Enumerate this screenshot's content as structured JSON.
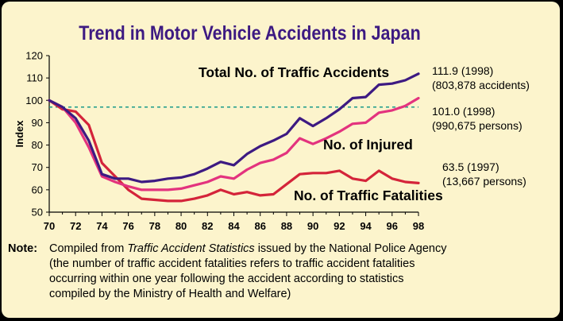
{
  "title": "Trend in Motor Vehicle Accidents in Japan",
  "note": {
    "label": "Note:",
    "line1_prefix": "Compiled from ",
    "line1_italic": "Traffic Accident Statistics",
    "line1_suffix": " issued by the National Police Agency",
    "line2": "(the number of traffic accident fatalities refers to traffic accident fatalities",
    "line3": "occurring within one year following the accident according to statistics",
    "line4": "compiled by the Ministry of Health and Welfare)"
  },
  "colors": {
    "background": "#fcf4cc",
    "accidents": "#3d1a82",
    "injured": "#e3337e",
    "fatalities": "#d4243a",
    "reference_line": "#1a9a8a"
  },
  "chart_data": {
    "type": "line",
    "title": "Trend in Motor Vehicle Accidents in Japan",
    "xlabel": "",
    "ylabel": "Index",
    "xlim": [
      70,
      98
    ],
    "ylim": [
      50,
      120
    ],
    "xticks": [
      70,
      72,
      74,
      76,
      78,
      80,
      82,
      84,
      86,
      88,
      90,
      92,
      94,
      96,
      98
    ],
    "yticks": [
      50,
      60,
      70,
      80,
      90,
      100,
      110,
      120
    ],
    "reference_line": 97,
    "grid": false,
    "series": [
      {
        "name": "Total No. of Traffic Accidents",
        "color": "#3d1a82",
        "x": [
          70,
          71,
          72,
          73,
          74,
          75,
          76,
          77,
          78,
          79,
          80,
          81,
          82,
          83,
          84,
          85,
          86,
          87,
          88,
          89,
          90,
          91,
          92,
          93,
          94,
          95,
          96,
          97,
          98
        ],
        "y": [
          100,
          97,
          92,
          82,
          67,
          65,
          65,
          63.5,
          64,
          65,
          65.5,
          67,
          69.5,
          72.5,
          71,
          76,
          79.5,
          82,
          85,
          92,
          88.5,
          92,
          96,
          101,
          101.5,
          107,
          107.5,
          109,
          111.9
        ],
        "annotation": [
          "111.9 (1998)",
          "(803,878 accidents)"
        ]
      },
      {
        "name": "No. of Injured",
        "color": "#e3337e",
        "x": [
          70,
          71,
          72,
          73,
          74,
          75,
          76,
          77,
          78,
          79,
          80,
          81,
          82,
          83,
          84,
          85,
          86,
          87,
          88,
          89,
          90,
          91,
          92,
          93,
          94,
          95,
          96,
          97,
          98
        ],
        "y": [
          100,
          97,
          90,
          79,
          66,
          63.5,
          61.5,
          60,
          60,
          60,
          60.5,
          62,
          63.5,
          66,
          65,
          69,
          72,
          73.5,
          76.5,
          83,
          80.5,
          83,
          86,
          89.5,
          90,
          94.5,
          95.5,
          97.5,
          101.0
        ],
        "annotation": [
          "101.0 (1998)",
          "(990,675 persons)"
        ]
      },
      {
        "name": "No. of Traffic Fatalities",
        "color": "#d4243a",
        "x": [
          70,
          71,
          72,
          73,
          74,
          75,
          76,
          77,
          78,
          79,
          80,
          81,
          82,
          83,
          84,
          85,
          86,
          87,
          88,
          89,
          90,
          91,
          92,
          93,
          94,
          95,
          96,
          97,
          98
        ],
        "y": [
          100,
          96,
          95,
          89,
          72,
          66,
          60,
          56,
          55.5,
          55,
          55,
          56,
          57.5,
          60,
          58,
          59,
          57.5,
          58,
          62.5,
          67,
          67.5,
          67.5,
          68.5,
          65,
          64,
          68.5,
          65,
          63.5,
          63
        ],
        "annotation": [
          "63.5 (1997)",
          "(13,667 persons)"
        ]
      }
    ]
  }
}
